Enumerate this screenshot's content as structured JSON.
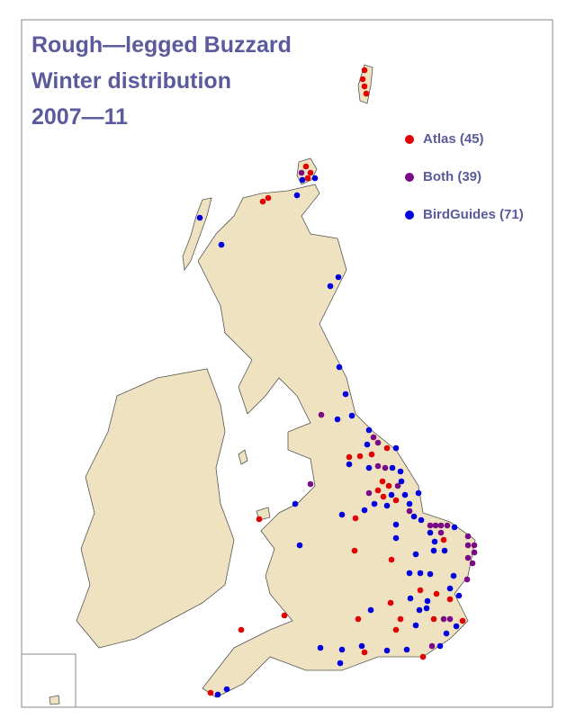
{
  "title": [
    "Rough—legged Buzzard",
    "Winter distribution",
    "2007—11"
  ],
  "legend": [
    {
      "label": "Atlas (45)",
      "color": "#e00000"
    },
    {
      "label": "Both (39)",
      "color": "#7a0a86"
    },
    {
      "label": "BirdGuides (71)",
      "color": "#0000e0"
    }
  ]
}
